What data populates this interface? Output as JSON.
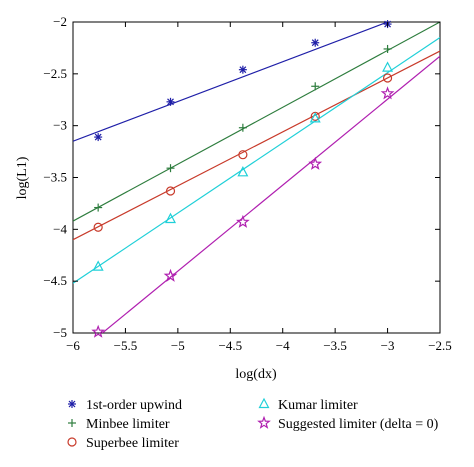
{
  "chart_data": {
    "type": "scatter",
    "title": "",
    "xlabel": "log(dx)",
    "ylabel": "log(L1)",
    "xlim": [
      -6,
      -2.5
    ],
    "ylim": [
      -5,
      -2
    ],
    "xticks": [
      -6,
      -5.5,
      -5,
      -4.5,
      -4,
      -3.5,
      -3,
      -2.5
    ],
    "xtick_labels": [
      "−6",
      "−5.5",
      "−5",
      "−4.5",
      "−4",
      "−3.5",
      "−3",
      "−2.5"
    ],
    "yticks": [
      -5,
      -4.5,
      -4,
      -3.5,
      -3,
      -2.5,
      -2
    ],
    "ytick_labels": [
      "−5",
      "−4.5",
      "−4",
      "−3.5",
      "−3",
      "−2.5",
      "−2"
    ],
    "grid": false,
    "legend_placement": "bottom",
    "series": [
      {
        "name": "1st-order upwind",
        "marker": "asterisk",
        "color": "#1f1fa8",
        "x": [
          -5.76,
          -5.07,
          -4.38,
          -3.69,
          -3.0
        ],
        "y": [
          -3.11,
          -2.77,
          -2.46,
          -2.2,
          -2.02
        ],
        "fit": {
          "x": [
            -6,
            -3.0
          ],
          "y": [
            -3.15,
            -2.0
          ]
        }
      },
      {
        "name": "Minbee limiter",
        "marker": "plus",
        "color": "#2e7d3e",
        "x": [
          -5.76,
          -5.07,
          -4.38,
          -3.69,
          -3.0
        ],
        "y": [
          -3.79,
          -3.41,
          -3.02,
          -2.62,
          -2.26
        ],
        "fit": {
          "x": [
            -6,
            -2.5
          ],
          "y": [
            -3.92,
            -2.0
          ]
        }
      },
      {
        "name": "Superbee limiter",
        "marker": "circle",
        "color": "#c83a2a",
        "x": [
          -5.76,
          -5.07,
          -4.38,
          -3.69,
          -3.0
        ],
        "y": [
          -3.98,
          -3.63,
          -3.28,
          -2.91,
          -2.54
        ],
        "fit": {
          "x": [
            -6,
            -2.5
          ],
          "y": [
            -4.1,
            -2.28
          ]
        }
      },
      {
        "name": "Kumar limiter",
        "marker": "triangle",
        "color": "#20d0d8",
        "x": [
          -5.76,
          -5.07,
          -4.38,
          -3.69,
          -3.0
        ],
        "y": [
          -4.36,
          -3.9,
          -3.45,
          -2.93,
          -2.44
        ],
        "fit": {
          "x": [
            -6,
            -2.5
          ],
          "y": [
            -4.52,
            -2.15
          ]
        }
      },
      {
        "name": "Suggested limiter (delta = 0)",
        "marker": "star",
        "color": "#b020b0",
        "x": [
          -5.76,
          -5.07,
          -4.38,
          -3.69,
          -3.0
        ],
        "y": [
          -4.99,
          -4.45,
          -3.93,
          -3.37,
          -2.69
        ],
        "fit": {
          "x": [
            -5.72,
            -2.5
          ],
          "y": [
            -5.0,
            -2.33
          ]
        }
      }
    ]
  }
}
